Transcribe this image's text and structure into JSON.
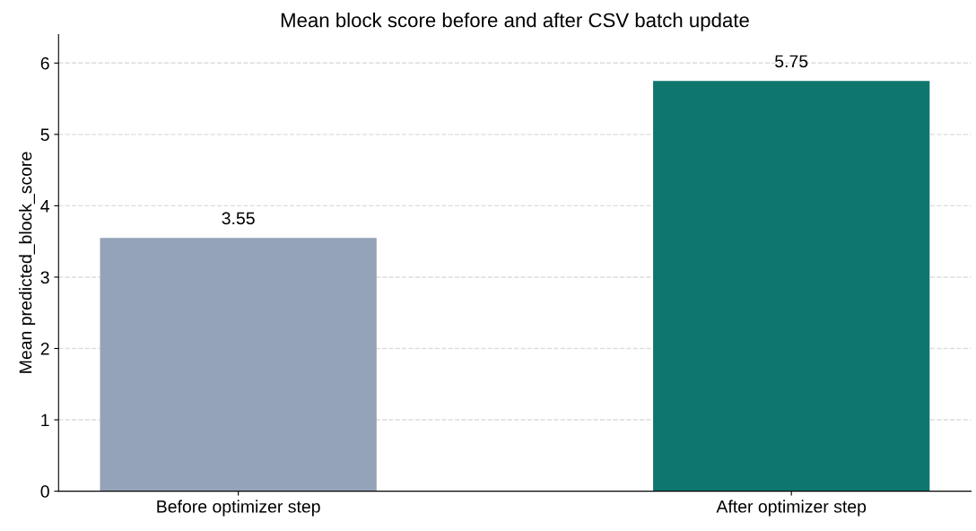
{
  "chart_data": {
    "type": "bar",
    "title": "Mean block score before and after CSV batch update",
    "ylabel": "Mean predicted_block_score",
    "categories": [
      "Before optimizer step",
      "After optimizer step"
    ],
    "values": [
      3.55,
      5.75
    ],
    "colors": [
      "#94a3b8",
      "#0f766e"
    ],
    "data_labels": true,
    "ylim": [
      0,
      6.4
    ],
    "yticks": [
      0,
      1,
      2,
      3,
      4,
      5,
      6
    ],
    "grid": "y"
  }
}
